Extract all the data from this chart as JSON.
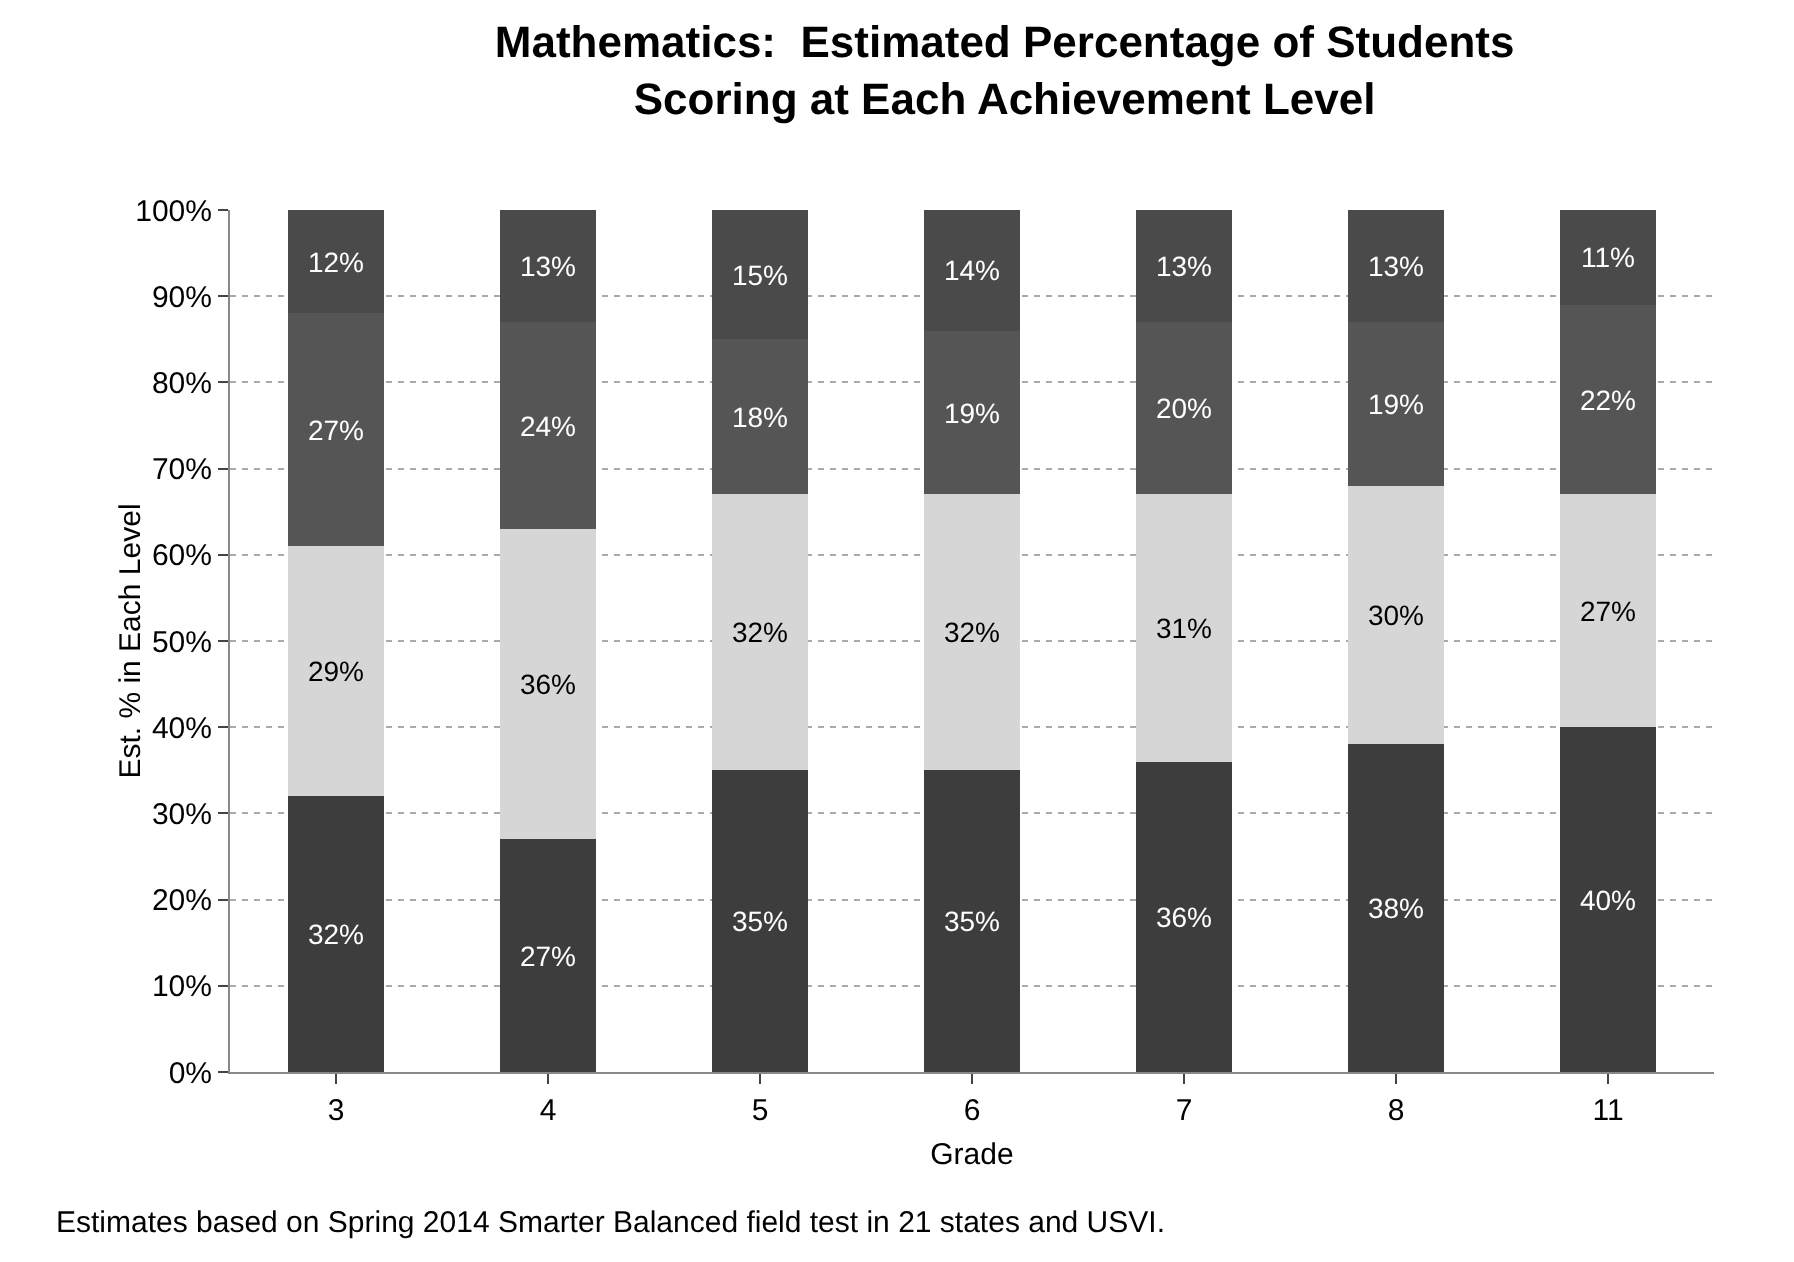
{
  "chart_data": {
    "type": "bar",
    "stacked": true,
    "title": "Mathematics:  Estimated Percentage of Students\nScoring at Each Achievement Level",
    "xlabel": "Grade",
    "ylabel": "Est. % in Each Level",
    "categories": [
      "3",
      "4",
      "5",
      "6",
      "7",
      "8",
      "11"
    ],
    "series": [
      {
        "color": "#3d3d3d",
        "values": [
          32,
          27,
          35,
          35,
          36,
          38,
          40
        ],
        "value_labels": [
          "32%",
          "27%",
          "35%",
          "35%",
          "36%",
          "38%",
          "40%"
        ]
      },
      {
        "color": "#d6d6d6",
        "values": [
          29,
          36,
          32,
          32,
          31,
          30,
          27
        ],
        "value_labels": [
          "29%",
          "36%",
          "32%",
          "32%",
          "31%",
          "30%",
          "27%"
        ]
      },
      {
        "color": "#555555",
        "values": [
          27,
          24,
          18,
          19,
          20,
          19,
          22
        ],
        "value_labels": [
          "27%",
          "24%",
          "18%",
          "19%",
          "20%",
          "19%",
          "22%"
        ]
      },
      {
        "color": "#4a4a4a",
        "values": [
          12,
          13,
          15,
          14,
          13,
          13,
          11
        ],
        "value_labels": [
          "12%",
          "13%",
          "15%",
          "14%",
          "13%",
          "13%",
          "11%"
        ]
      }
    ],
    "ylim": [
      0,
      100
    ],
    "yticks": [
      {
        "value": 0,
        "label": "0%"
      },
      {
        "value": 10,
        "label": "10%"
      },
      {
        "value": 20,
        "label": "20%"
      },
      {
        "value": 30,
        "label": "30%"
      },
      {
        "value": 40,
        "label": "40%"
      },
      {
        "value": 50,
        "label": "50%"
      },
      {
        "value": 60,
        "label": "60%"
      },
      {
        "value": 70,
        "label": "70%"
      },
      {
        "value": 80,
        "label": "80%"
      },
      {
        "value": 90,
        "label": "90%"
      },
      {
        "value": 100,
        "label": "100%"
      }
    ],
    "grid": "y",
    "annotations": [
      "Estimates based on Spring 2014 Smarter Balanced field test in 21 states and USVI."
    ]
  }
}
